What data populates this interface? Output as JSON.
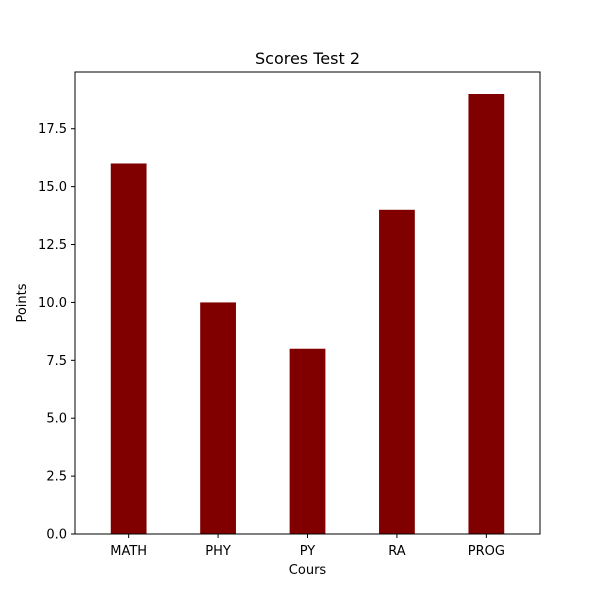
{
  "chart_data": {
    "type": "bar",
    "title": "Scores Test 2",
    "xlabel": "Cours",
    "ylabel": "Points",
    "categories": [
      "MATH",
      "PHY",
      "PY",
      "RA",
      "PROG"
    ],
    "values": [
      16,
      10,
      8,
      14,
      19
    ],
    "ylim": [
      0,
      19.95
    ],
    "y_ticks": [
      0.0,
      2.5,
      5.0,
      7.5,
      10.0,
      12.5,
      15.0,
      17.5
    ],
    "y_tick_labels": [
      "0.0",
      "2.5",
      "5.0",
      "7.5",
      "10.0",
      "12.5",
      "15.0",
      "17.5"
    ],
    "grid": false,
    "bar_color": "#800000"
  }
}
